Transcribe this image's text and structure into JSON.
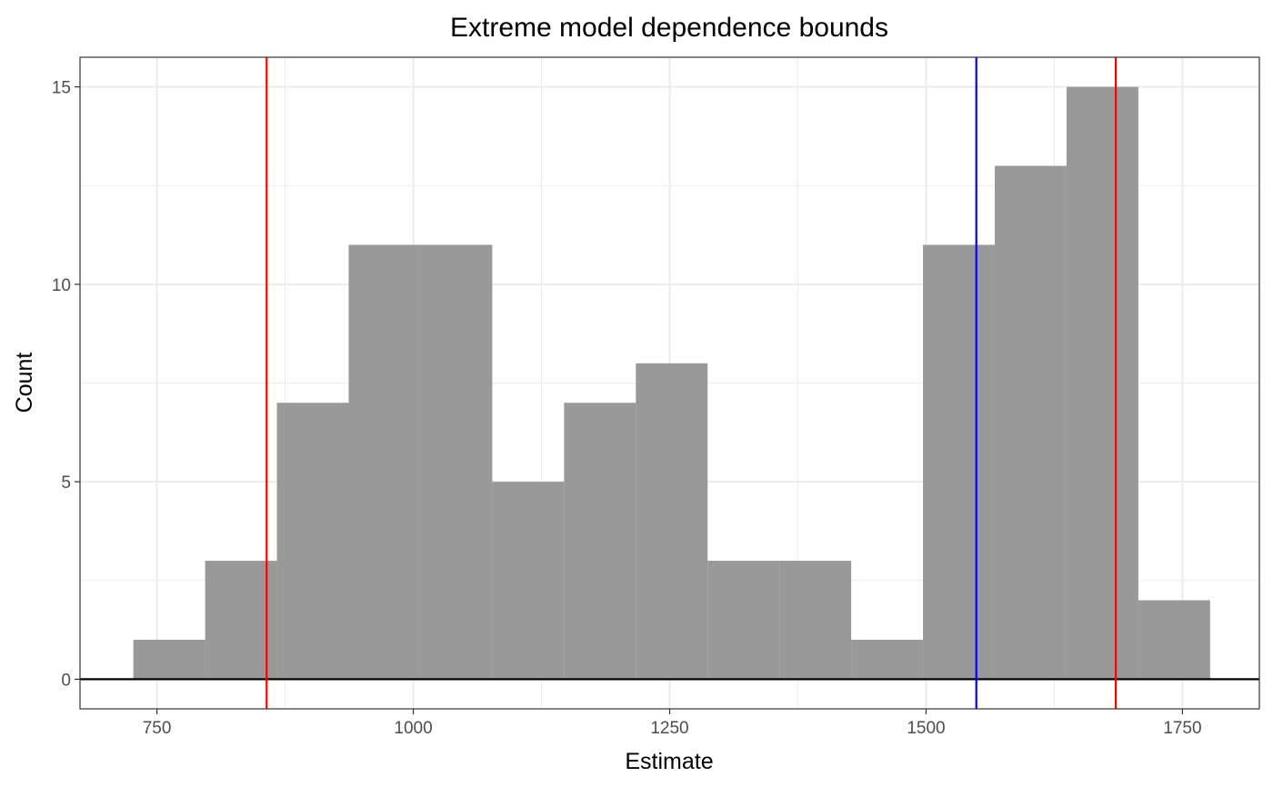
{
  "chart_data": {
    "type": "bar",
    "subtype": "histogram",
    "title": "Extreme model dependence bounds",
    "xlabel": "Estimate",
    "ylabel": "Count",
    "xlim": [
      675,
      1825
    ],
    "ylim": [
      -0.75,
      15.75
    ],
    "x_ticks": [
      750,
      1000,
      1250,
      1500,
      1750
    ],
    "x_tick_labels": [
      "750",
      "1000",
      "1250",
      "1500",
      "1750"
    ],
    "y_ticks": [
      0,
      5,
      10,
      15
    ],
    "y_tick_labels": [
      "0",
      "5",
      "10",
      "15"
    ],
    "grid": true,
    "bar_color": "#999999",
    "bins": [
      {
        "x0": 727,
        "x1": 797,
        "count": 1
      },
      {
        "x0": 797,
        "x1": 867,
        "count": 3
      },
      {
        "x0": 867,
        "x1": 937,
        "count": 7
      },
      {
        "x0": 937,
        "x1": 1007,
        "count": 11
      },
      {
        "x0": 1007,
        "x1": 1077,
        "count": 11
      },
      {
        "x0": 1077,
        "x1": 1147,
        "count": 5
      },
      {
        "x0": 1147,
        "x1": 1217,
        "count": 7
      },
      {
        "x0": 1217,
        "x1": 1287,
        "count": 8
      },
      {
        "x0": 1287,
        "x1": 1357,
        "count": 3
      },
      {
        "x0": 1357,
        "x1": 1427,
        "count": 3
      },
      {
        "x0": 1427,
        "x1": 1497,
        "count": 1
      },
      {
        "x0": 1497,
        "x1": 1567,
        "count": 11
      },
      {
        "x0": 1567,
        "x1": 1637,
        "count": 13
      },
      {
        "x0": 1637,
        "x1": 1707,
        "count": 15
      },
      {
        "x0": 1707,
        "x1": 1777,
        "count": 2
      }
    ],
    "vlines": [
      {
        "x": 857,
        "color": "#ff0000"
      },
      {
        "x": 1549,
        "color": "#0000ff"
      },
      {
        "x": 1685,
        "color": "#ff0000"
      }
    ],
    "hline": {
      "y": 0,
      "color": "#000000"
    }
  }
}
